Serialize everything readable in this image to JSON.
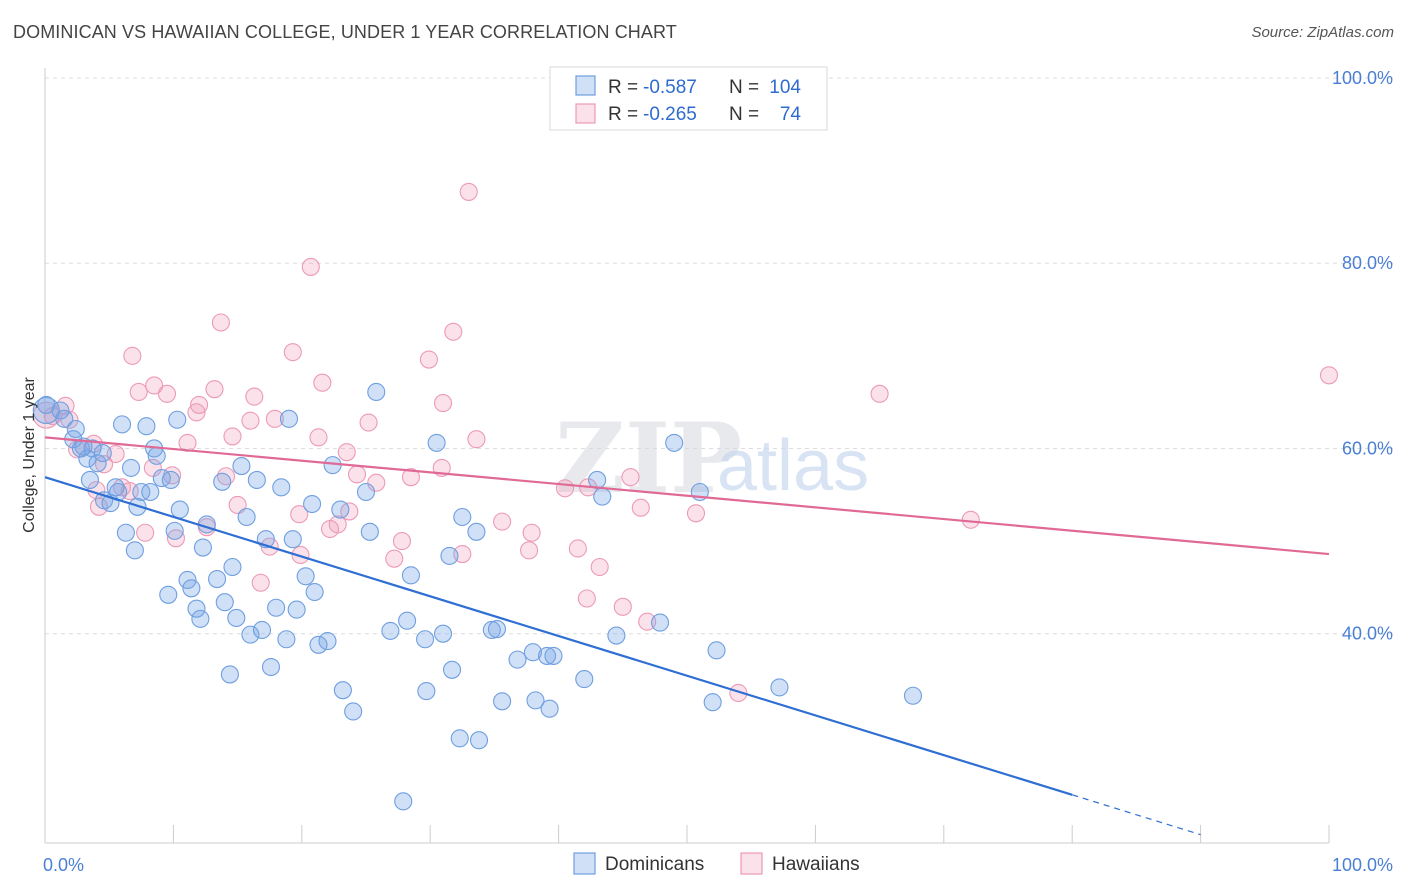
{
  "title": "DOMINICAN VS HAWAIIAN COLLEGE, UNDER 1 YEAR CORRELATION CHART",
  "source": "Source: ZipAtlas.com",
  "watermark": {
    "zip": "ZIP",
    "atlas": "atlas"
  },
  "colors": {
    "blue_fill": "rgba(120,165,230,0.35)",
    "blue_stroke": "#6f9fe0",
    "blue_line": "#2f6fd3",
    "pink_fill": "rgba(240,150,180,0.28)",
    "pink_stroke": "#ec9ab6",
    "pink_line": "#e06a95",
    "grid": "#dddddd",
    "tick_label": "#4a7fd4"
  },
  "legend": {
    "rows": [
      {
        "r_label": "R = ",
        "r_value": "-0.587",
        "n_label": "N = ",
        "n_value": "104"
      },
      {
        "r_label": "R = ",
        "r_value": "-0.265",
        "n_label": "N = ",
        "n_value": "74"
      }
    ]
  },
  "chart_data": {
    "type": "scatter",
    "title": "DOMINICAN VS HAWAIIAN COLLEGE, UNDER 1 YEAR CORRELATION CHART",
    "xlabel": "",
    "ylabel": "College, Under 1 year",
    "xlim": [
      0,
      100
    ],
    "ylim": [
      17.4,
      100.0
    ],
    "y_ticks": [
      40,
      60,
      80,
      100
    ],
    "y_tick_labels": [
      "40.0%",
      "60.0%",
      "80.0%",
      "100.0%"
    ],
    "x_tick_labels": [
      "0.0%",
      "100.0%"
    ],
    "grid": true,
    "legend_position": "top-center",
    "series": [
      {
        "name": "Dominicans",
        "color": "#6f9fe0",
        "R": -0.587,
        "N": 104,
        "trend": {
          "x0": 0,
          "y0": 56.9,
          "x1": 80,
          "y1": 22.6,
          "dash_to_x": 90,
          "dash_to_y": 18.3
        },
        "points": [
          [
            0.1,
            64.1
          ],
          [
            1.2,
            64.1
          ],
          [
            1.5,
            63.2
          ],
          [
            2.2,
            61.0
          ],
          [
            2.4,
            62.1
          ],
          [
            2.8,
            60.0
          ],
          [
            3.3,
            58.9
          ],
          [
            3.7,
            60.0
          ],
          [
            3.5,
            56.6
          ],
          [
            4.1,
            58.4
          ],
          [
            4.5,
            59.5
          ],
          [
            4.6,
            54.4
          ],
          [
            5.1,
            54.1
          ],
          [
            5.5,
            55.8
          ],
          [
            5.7,
            55.3
          ],
          [
            6.0,
            62.6
          ],
          [
            6.3,
            50.9
          ],
          [
            6.7,
            57.9
          ],
          [
            7.0,
            49.0
          ],
          [
            7.2,
            53.7
          ],
          [
            7.5,
            55.3
          ],
          [
            7.9,
            62.4
          ],
          [
            8.2,
            55.3
          ],
          [
            8.5,
            60.0
          ],
          [
            8.7,
            59.2
          ],
          [
            9.1,
            56.8
          ],
          [
            9.6,
            44.2
          ],
          [
            9.8,
            56.6
          ],
          [
            10.1,
            51.1
          ],
          [
            10.3,
            63.1
          ],
          [
            10.5,
            53.4
          ],
          [
            11.1,
            45.8
          ],
          [
            11.4,
            44.9
          ],
          [
            11.8,
            42.7
          ],
          [
            12.1,
            41.6
          ],
          [
            12.3,
            49.3
          ],
          [
            12.6,
            51.8
          ],
          [
            13.4,
            45.9
          ],
          [
            13.8,
            56.4
          ],
          [
            14.0,
            43.4
          ],
          [
            14.4,
            35.6
          ],
          [
            14.6,
            47.2
          ],
          [
            14.9,
            41.7
          ],
          [
            15.3,
            58.1
          ],
          [
            15.7,
            52.6
          ],
          [
            16.0,
            39.9
          ],
          [
            16.5,
            56.6
          ],
          [
            16.9,
            40.4
          ],
          [
            17.2,
            50.2
          ],
          [
            17.6,
            36.4
          ],
          [
            18.0,
            42.8
          ],
          [
            18.4,
            55.8
          ],
          [
            18.8,
            39.4
          ],
          [
            19.0,
            63.2
          ],
          [
            19.3,
            50.2
          ],
          [
            19.6,
            42.6
          ],
          [
            20.3,
            46.2
          ],
          [
            20.8,
            54.0
          ],
          [
            21.0,
            44.5
          ],
          [
            21.3,
            38.8
          ],
          [
            22.0,
            39.2
          ],
          [
            22.4,
            58.2
          ],
          [
            23.0,
            53.4
          ],
          [
            23.2,
            33.9
          ],
          [
            24.0,
            31.6
          ],
          [
            25.0,
            55.3
          ],
          [
            25.3,
            51.0
          ],
          [
            25.8,
            66.1
          ],
          [
            26.9,
            40.3
          ],
          [
            27.9,
            21.9
          ],
          [
            28.2,
            41.4
          ],
          [
            28.5,
            46.3
          ],
          [
            29.6,
            39.4
          ],
          [
            29.7,
            33.8
          ],
          [
            30.5,
            60.6
          ],
          [
            31.0,
            40.0
          ],
          [
            31.5,
            48.4
          ],
          [
            31.7,
            36.1
          ],
          [
            32.3,
            28.7
          ],
          [
            32.5,
            52.6
          ],
          [
            33.6,
            51.0
          ],
          [
            33.8,
            28.5
          ],
          [
            34.8,
            40.4
          ],
          [
            35.2,
            40.5
          ],
          [
            35.6,
            32.7
          ],
          [
            36.8,
            37.2
          ],
          [
            38.0,
            38.0
          ],
          [
            38.2,
            32.8
          ],
          [
            39.1,
            37.6
          ],
          [
            39.3,
            31.9
          ],
          [
            39.6,
            37.6
          ],
          [
            42.0,
            35.1
          ],
          [
            43.0,
            56.6
          ],
          [
            43.4,
            54.8
          ],
          [
            44.5,
            39.8
          ],
          [
            47.9,
            41.2
          ],
          [
            49.0,
            60.6
          ],
          [
            51.0,
            55.3
          ],
          [
            52.0,
            32.6
          ],
          [
            52.3,
            38.2
          ],
          [
            57.2,
            34.2
          ],
          [
            67.6,
            33.3
          ],
          [
            0.1,
            64.7
          ],
          [
            3.0,
            60.2
          ]
        ]
      },
      {
        "name": "Hawaiians",
        "color": "#ec9ab6",
        "R": -0.265,
        "N": 74,
        "trend": {
          "x0": 0,
          "y0": 61.2,
          "x1": 100,
          "y1": 48.6
        },
        "points": [
          [
            0.1,
            63.6
          ],
          [
            0.6,
            63.5
          ],
          [
            1.6,
            64.6
          ],
          [
            1.9,
            63.1
          ],
          [
            2.5,
            59.9
          ],
          [
            3.8,
            60.5
          ],
          [
            4.0,
            55.5
          ],
          [
            4.2,
            53.7
          ],
          [
            4.6,
            58.3
          ],
          [
            5.5,
            59.4
          ],
          [
            6.0,
            55.8
          ],
          [
            6.6,
            55.4
          ],
          [
            6.8,
            70.0
          ],
          [
            7.3,
            66.1
          ],
          [
            7.8,
            50.9
          ],
          [
            8.4,
            57.9
          ],
          [
            8.5,
            66.8
          ],
          [
            9.5,
            65.9
          ],
          [
            9.9,
            57.1
          ],
          [
            10.2,
            50.3
          ],
          [
            11.1,
            60.6
          ],
          [
            11.8,
            63.9
          ],
          [
            12.0,
            64.7
          ],
          [
            12.6,
            51.5
          ],
          [
            13.2,
            66.4
          ],
          [
            13.7,
            73.6
          ],
          [
            14.1,
            57.0
          ],
          [
            14.6,
            61.3
          ],
          [
            15.0,
            53.9
          ],
          [
            16.0,
            63.0
          ],
          [
            16.3,
            65.6
          ],
          [
            16.8,
            45.5
          ],
          [
            17.5,
            49.4
          ],
          [
            17.9,
            63.2
          ],
          [
            19.3,
            70.4
          ],
          [
            19.8,
            52.9
          ],
          [
            19.9,
            48.5
          ],
          [
            20.7,
            79.6
          ],
          [
            21.3,
            61.2
          ],
          [
            21.6,
            67.1
          ],
          [
            22.2,
            51.3
          ],
          [
            22.8,
            51.8
          ],
          [
            23.5,
            59.6
          ],
          [
            23.7,
            53.2
          ],
          [
            24.3,
            57.2
          ],
          [
            25.2,
            62.8
          ],
          [
            25.8,
            56.3
          ],
          [
            27.2,
            48.1
          ],
          [
            27.8,
            50.0
          ],
          [
            28.5,
            56.9
          ],
          [
            29.9,
            69.6
          ],
          [
            30.9,
            57.9
          ],
          [
            31.0,
            64.9
          ],
          [
            31.8,
            72.6
          ],
          [
            32.5,
            48.6
          ],
          [
            33.0,
            87.7
          ],
          [
            33.6,
            61.0
          ],
          [
            35.6,
            52.1
          ],
          [
            37.7,
            49.0
          ],
          [
            37.9,
            50.9
          ],
          [
            40.5,
            55.7
          ],
          [
            41.5,
            49.2
          ],
          [
            42.2,
            43.8
          ],
          [
            43.2,
            47.2
          ],
          [
            45.0,
            42.9
          ],
          [
            45.6,
            56.9
          ],
          [
            46.4,
            53.6
          ],
          [
            46.9,
            41.3
          ],
          [
            50.7,
            53.0
          ],
          [
            54.0,
            33.6
          ],
          [
            65.0,
            65.9
          ],
          [
            72.1,
            52.3
          ],
          [
            100.0,
            67.9
          ],
          [
            42.3,
            55.8
          ]
        ]
      }
    ]
  },
  "bottom_legend": [
    "Dominicans",
    "Hawaiians"
  ]
}
